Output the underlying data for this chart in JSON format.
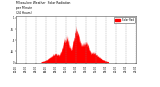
{
  "title": "Milwaukee Weather  Solar Radiation\nper Minute\n(24 Hours)",
  "bar_color": "#ff0000",
  "bg_color": "#ffffff",
  "grid_color": "#888888",
  "legend_label": "Solar Rad",
  "legend_color": "#ff0000",
  "ylim_max": 1.05,
  "n_points": 1440,
  "sunrise": 300,
  "sunset": 1110,
  "figsize": [
    1.6,
    0.87
  ],
  "dpi": 100
}
